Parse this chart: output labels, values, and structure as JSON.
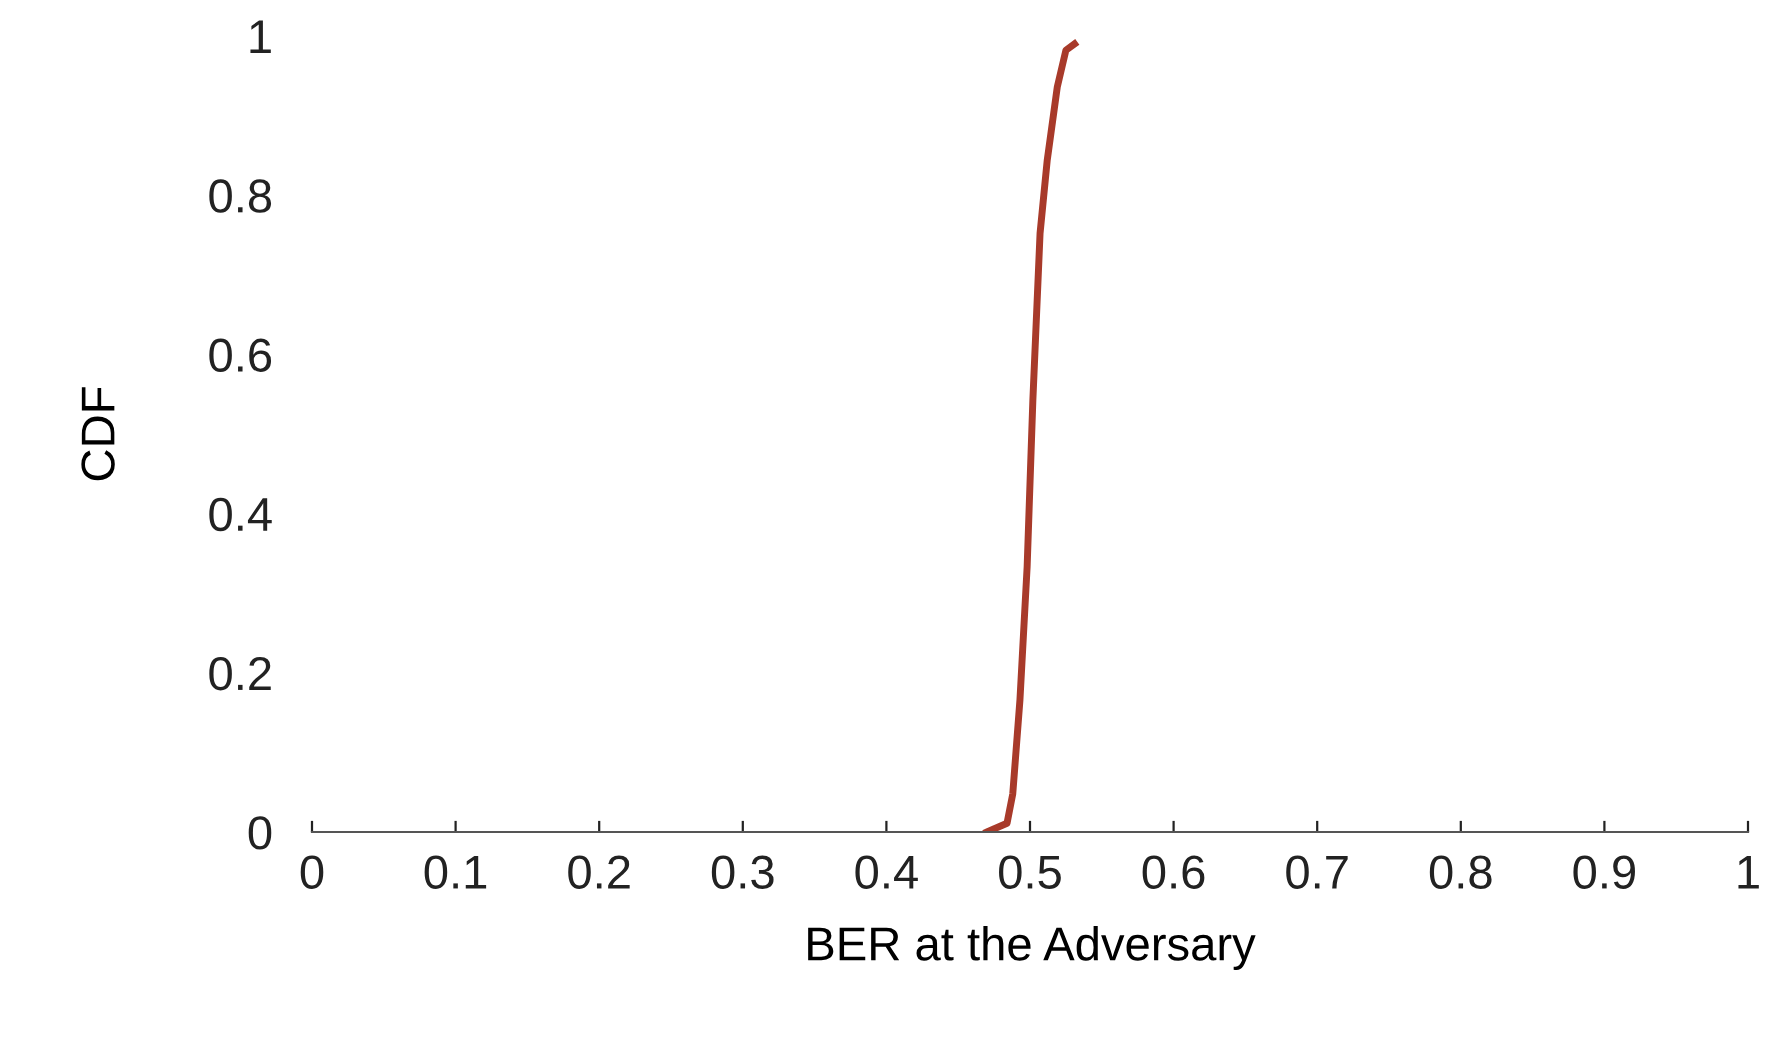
{
  "chart_data": {
    "type": "line",
    "xlabel": "BER at the Adversary",
    "ylabel": "CDF",
    "xlim": [
      0,
      1
    ],
    "xticks": [
      0,
      0.1,
      0.2,
      0.3,
      0.4,
      0.5,
      0.6,
      0.7,
      0.8,
      0.9,
      1
    ],
    "ylim": [
      0,
      1
    ],
    "yticks": [
      0,
      0.2,
      0.4,
      0.6,
      0.8,
      1
    ],
    "grid": false,
    "legend": false,
    "marker": "none",
    "line_style": "solid",
    "series": [
      {
        "color": "#a83a2a",
        "x": [
          0.47,
          0.484,
          0.488,
          0.493,
          0.498,
          0.502,
          0.507,
          0.512,
          0.519,
          0.525,
          0.531
        ],
        "values": [
          0,
          0.011,
          0.048,
          0.166,
          0.333,
          0.543,
          0.752,
          0.844,
          0.936,
          0.982,
          0.99
        ]
      }
    ]
  }
}
